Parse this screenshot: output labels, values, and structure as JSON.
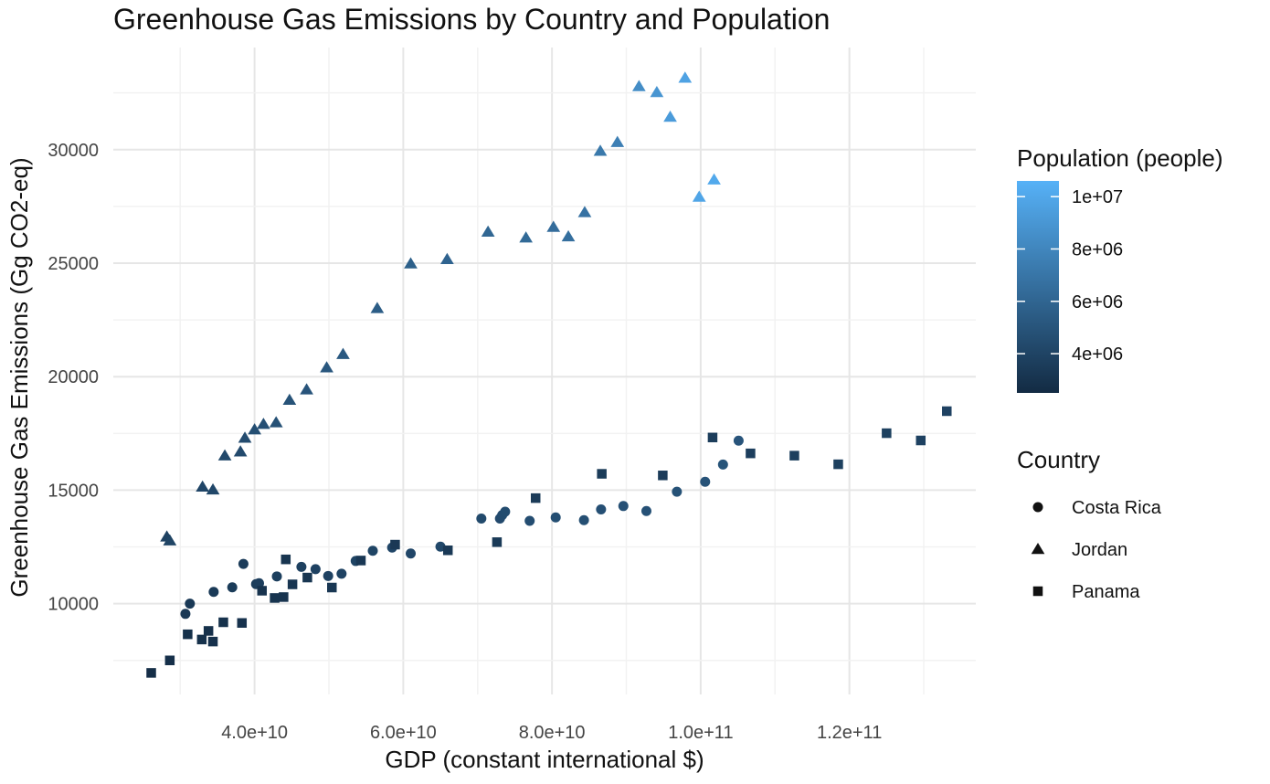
{
  "chart_data": {
    "type": "scatter",
    "title": "Greenhouse Gas Emissions by Country and Population",
    "xlabel": "GDP (constant international $)",
    "ylabel": "Greenhouse Gas Emissions (Gg CO2-eq)",
    "xlim": [
      21000000000,
      137000000000
    ],
    "ylim": [
      6000000000,
      34500
    ],
    "x_ticks": [
      {
        "value": 40000000000,
        "label": "4.0e+10"
      },
      {
        "value": 60000000000,
        "label": "6.0e+10"
      },
      {
        "value": 80000000000,
        "label": "8.0e+10"
      },
      {
        "value": 100000000000,
        "label": "1.0e+11"
      },
      {
        "value": 120000000000,
        "label": "1.2e+11"
      }
    ],
    "y_ticks": [
      {
        "value": 10000,
        "label": "10000"
      },
      {
        "value": 15000,
        "label": "15000"
      },
      {
        "value": 20000,
        "label": "20000"
      },
      {
        "value": 25000,
        "label": "25000"
      },
      {
        "value": 30000,
        "label": "30000"
      }
    ],
    "grid": true,
    "legend_position": "right",
    "color_legend": {
      "title": "Population (people)",
      "min": 2500000,
      "max": 10600000,
      "low_color": "#132b43",
      "high_color": "#56b1f7",
      "ticks": [
        {
          "value": 4000000,
          "label": "4e+06"
        },
        {
          "value": 6000000,
          "label": "6e+06"
        },
        {
          "value": 8000000,
          "label": "8e+06"
        },
        {
          "value": 10000000,
          "label": "1e+07"
        }
      ]
    },
    "shape_legend": {
      "title": "Country",
      "entries": [
        {
          "name": "Costa Rica",
          "shape": "circle"
        },
        {
          "name": "Jordan",
          "shape": "triangle"
        },
        {
          "name": "Panama",
          "shape": "square"
        }
      ]
    },
    "series": [
      {
        "name": "Costa Rica",
        "shape": "circle",
        "points": [
          [
            30700000000,
            9550,
            3300000
          ],
          [
            31300000000,
            10000,
            3350000
          ],
          [
            34500000000,
            10520,
            3400000
          ],
          [
            37000000000,
            10720,
            3500000
          ],
          [
            38500000000,
            11750,
            3550000
          ],
          [
            40200000000,
            10860,
            3600000
          ],
          [
            40600000000,
            10900,
            3650000
          ],
          [
            43000000000,
            11200,
            3700000
          ],
          [
            46300000000,
            11620,
            3800000
          ],
          [
            48200000000,
            11520,
            3850000
          ],
          [
            49900000000,
            11220,
            3900000
          ],
          [
            51700000000,
            11320,
            3950000
          ],
          [
            53600000000,
            11880,
            4000000
          ],
          [
            55900000000,
            12330,
            4050000
          ],
          [
            58500000000,
            12470,
            4100000
          ],
          [
            61000000000,
            12210,
            4150000
          ],
          [
            65000000000,
            12510,
            4250000
          ],
          [
            70500000000,
            13750,
            4350000
          ],
          [
            73000000000,
            13750,
            4400000
          ],
          [
            73300000000,
            13900,
            4450000
          ],
          [
            73700000000,
            14050,
            4480000
          ],
          [
            77000000000,
            13650,
            4550000
          ],
          [
            80500000000,
            13800,
            4600000
          ],
          [
            84300000000,
            13680,
            4650000
          ],
          [
            86600000000,
            14150,
            4700000
          ],
          [
            89600000000,
            14300,
            4750000
          ],
          [
            92700000000,
            14080,
            4800000
          ],
          [
            96800000000,
            14930,
            4850000
          ],
          [
            100600000000,
            15370,
            4900000
          ],
          [
            103000000000,
            16130,
            4950000
          ],
          [
            105100000000,
            17180,
            5000000
          ]
        ]
      },
      {
        "name": "Jordan",
        "shape": "triangle",
        "points": [
          [
            28200000000,
            12950,
            3900000
          ],
          [
            28600000000,
            12780,
            4000000
          ],
          [
            33000000000,
            15150,
            4100000
          ],
          [
            34400000000,
            15020,
            4200000
          ],
          [
            36000000000,
            16520,
            4300000
          ],
          [
            38100000000,
            16700,
            4400000
          ],
          [
            38700000000,
            17300,
            4500000
          ],
          [
            40000000000,
            17670,
            4600000
          ],
          [
            41200000000,
            17910,
            4700000
          ],
          [
            42900000000,
            17980,
            4800000
          ],
          [
            44700000000,
            18970,
            4900000
          ],
          [
            47000000000,
            19430,
            5000000
          ],
          [
            49700000000,
            20400,
            5150000
          ],
          [
            51900000000,
            20990,
            5300000
          ],
          [
            56500000000,
            23010,
            5500000
          ],
          [
            61000000000,
            24980,
            5700000
          ],
          [
            65900000000,
            25170,
            5900000
          ],
          [
            71400000000,
            26380,
            6100000
          ],
          [
            76500000000,
            26120,
            6300000
          ],
          [
            80200000000,
            26590,
            6450000
          ],
          [
            82200000000,
            26170,
            6600000
          ],
          [
            84400000000,
            27240,
            6800000
          ],
          [
            86500000000,
            29940,
            7200000
          ],
          [
            88800000000,
            30330,
            7600000
          ],
          [
            91700000000,
            32790,
            8400000
          ],
          [
            94100000000,
            32530,
            8900000
          ],
          [
            95900000000,
            31440,
            9300000
          ],
          [
            97900000000,
            33160,
            9700000
          ],
          [
            99800000000,
            27920,
            9900000
          ],
          [
            101800000000,
            28680,
            10100000
          ]
        ]
      },
      {
        "name": "Panama",
        "shape": "square",
        "points": [
          [
            26100000000,
            6950,
            2700000
          ],
          [
            28600000000,
            7500,
            2750000
          ],
          [
            31000000000,
            8650,
            2800000
          ],
          [
            32900000000,
            8420,
            2850000
          ],
          [
            33800000000,
            8800,
            2870000
          ],
          [
            34400000000,
            8330,
            2890000
          ],
          [
            35800000000,
            9180,
            2920000
          ],
          [
            38300000000,
            9150,
            2950000
          ],
          [
            41000000000,
            10570,
            3000000
          ],
          [
            42700000000,
            10250,
            3030000
          ],
          [
            43900000000,
            10290,
            3060000
          ],
          [
            44200000000,
            11950,
            3090000
          ],
          [
            45100000000,
            10850,
            3120000
          ],
          [
            47100000000,
            11150,
            3150000
          ],
          [
            50400000000,
            10710,
            3200000
          ],
          [
            54300000000,
            11900,
            3250000
          ],
          [
            58900000000,
            12600,
            3300000
          ],
          [
            66000000000,
            12350,
            3350000
          ],
          [
            72600000000,
            12710,
            3400000
          ],
          [
            77800000000,
            14650,
            3450000
          ],
          [
            86700000000,
            15720,
            3500000
          ],
          [
            94900000000,
            15650,
            3550000
          ],
          [
            101600000000,
            17320,
            3600000
          ],
          [
            106700000000,
            16620,
            3650000
          ],
          [
            112600000000,
            16520,
            3700000
          ],
          [
            118500000000,
            16140,
            3750000
          ],
          [
            125000000000,
            17510,
            3800000
          ],
          [
            129600000000,
            17190,
            3850000
          ],
          [
            133100000000,
            18480,
            3900000
          ]
        ]
      }
    ]
  }
}
